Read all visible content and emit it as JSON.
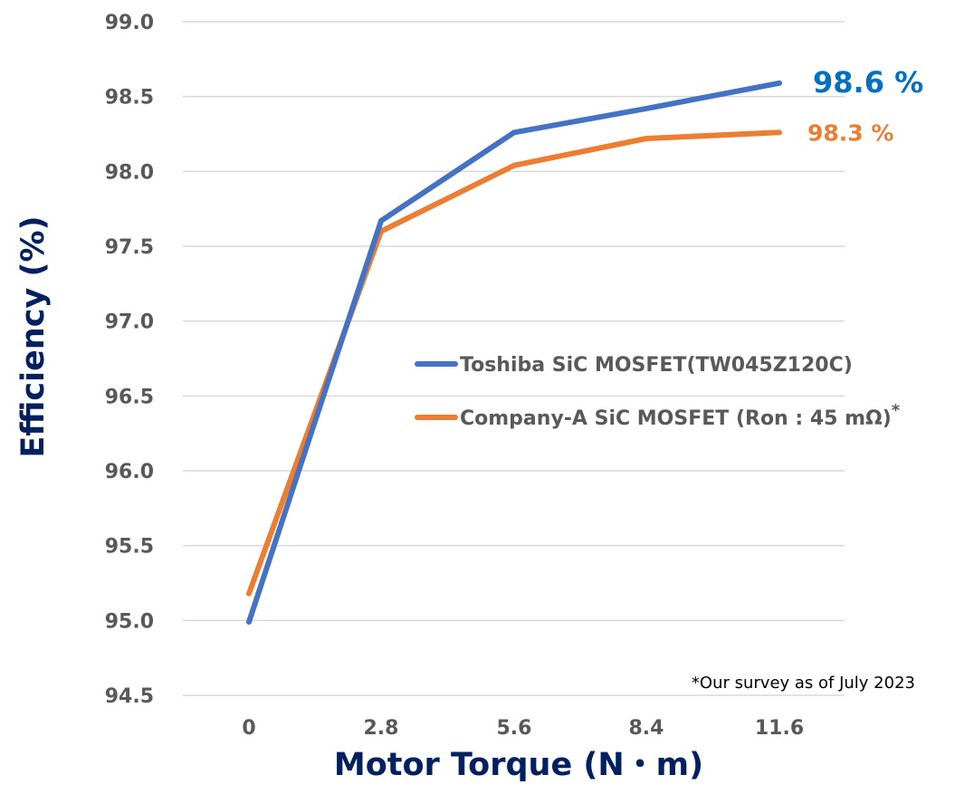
{
  "chart_data": {
    "type": "line",
    "x": [
      "0",
      "2.8",
      "5.6",
      "8.4",
      "11.6"
    ],
    "xlabel": "Motor Torque (N・m)",
    "ylabel": "Efficiency (%)",
    "ylim": [
      94.5,
      99.0
    ],
    "ytick_step": 0.5,
    "yticks": [
      "94.5",
      "95.0",
      "95.5",
      "96.0",
      "96.5",
      "97.0",
      "97.5",
      "98.0",
      "98.5",
      "99.0"
    ],
    "grid": "horizontal",
    "legend_position": "center-right",
    "series": [
      {
        "name": "Toshiba SiC MOSFET(TW045Z120C)",
        "values": [
          94.99,
          97.67,
          98.26,
          98.42,
          98.59
        ],
        "color": "#4472C4",
        "end_label": "98.6 %",
        "end_label_color": "#0070C0"
      },
      {
        "name": "Company-A SiC MOSFET (Ron : 45 mΩ)",
        "name_suffix": "*",
        "values": [
          95.18,
          97.6,
          98.04,
          98.22,
          98.26
        ],
        "color": "#ED7D31",
        "end_label": "98.3 %",
        "end_label_color": "#ED7D31"
      }
    ],
    "note": "*Our survey as of July 2023"
  }
}
